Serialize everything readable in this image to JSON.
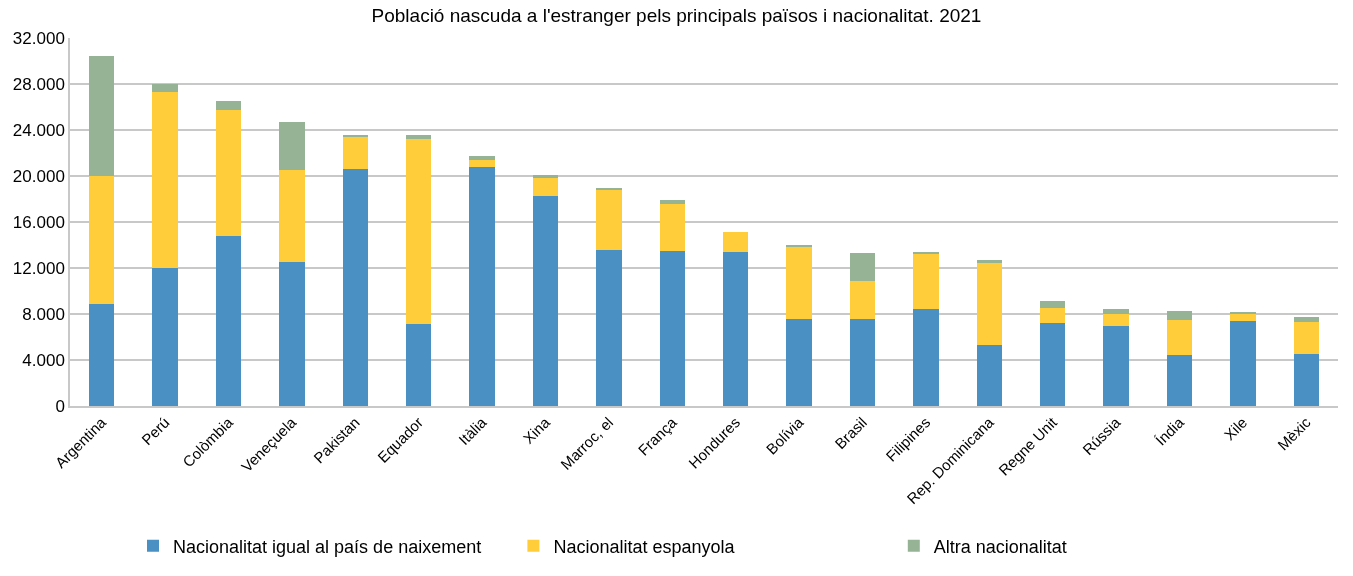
{
  "chart_data": {
    "type": "bar",
    "title": "Població nascuda a l'estranger pels principals països i nacionalitat. 2021",
    "categories": [
      "Argentina",
      "Perú",
      "Colòmbia",
      "Veneçuela",
      "Pakistan",
      "Equador",
      "Itàlia",
      "Xina",
      "Marroc, el",
      "França",
      "Hondures",
      "Bolívia",
      "Brasil",
      "Filipines",
      "Rep. Dominicana",
      "Regne Unit",
      "Rússia",
      "Índia",
      "Xile",
      "Mèxic"
    ],
    "stacked": true,
    "series": [
      {
        "name": "Nacionalitat igual al país de naixement",
        "color": "#4a90c2",
        "values": [
          8900,
          12000,
          14800,
          12500,
          20600,
          7100,
          20800,
          18300,
          13600,
          13500,
          13400,
          7600,
          7600,
          8400,
          5300,
          7200,
          7000,
          4400,
          7400,
          4500
        ]
      },
      {
        "name": "Nacionalitat espanyola",
        "color": "#ffcd3a",
        "values": [
          11100,
          15300,
          10900,
          8000,
          2800,
          16100,
          600,
          1500,
          5200,
          4100,
          1700,
          6200,
          3300,
          4900,
          7100,
          1300,
          1000,
          3100,
          600,
          2800
        ]
      },
      {
        "name": "Altra nacionalitat",
        "color": "#97b395",
        "values": [
          10400,
          700,
          800,
          4200,
          200,
          400,
          300,
          300,
          200,
          300,
          null,
          200,
          2400,
          100,
          300,
          600,
          400,
          800,
          100,
          400
        ]
      }
    ],
    "ylim": [
      0,
      32000
    ],
    "yticks": [
      {
        "value": 0,
        "label": "0"
      },
      {
        "value": 4000,
        "label": "4.000"
      },
      {
        "value": 8000,
        "label": "8.000"
      },
      {
        "value": 12000,
        "label": "12.000"
      },
      {
        "value": 16000,
        "label": "16.000"
      },
      {
        "value": 20000,
        "label": "20.000"
      },
      {
        "value": 24000,
        "label": "24.000"
      },
      {
        "value": 28000,
        "label": "28.000"
      },
      {
        "value": 32000,
        "label": "32.000"
      }
    ],
    "grid": "y",
    "legend": "bottom"
  }
}
